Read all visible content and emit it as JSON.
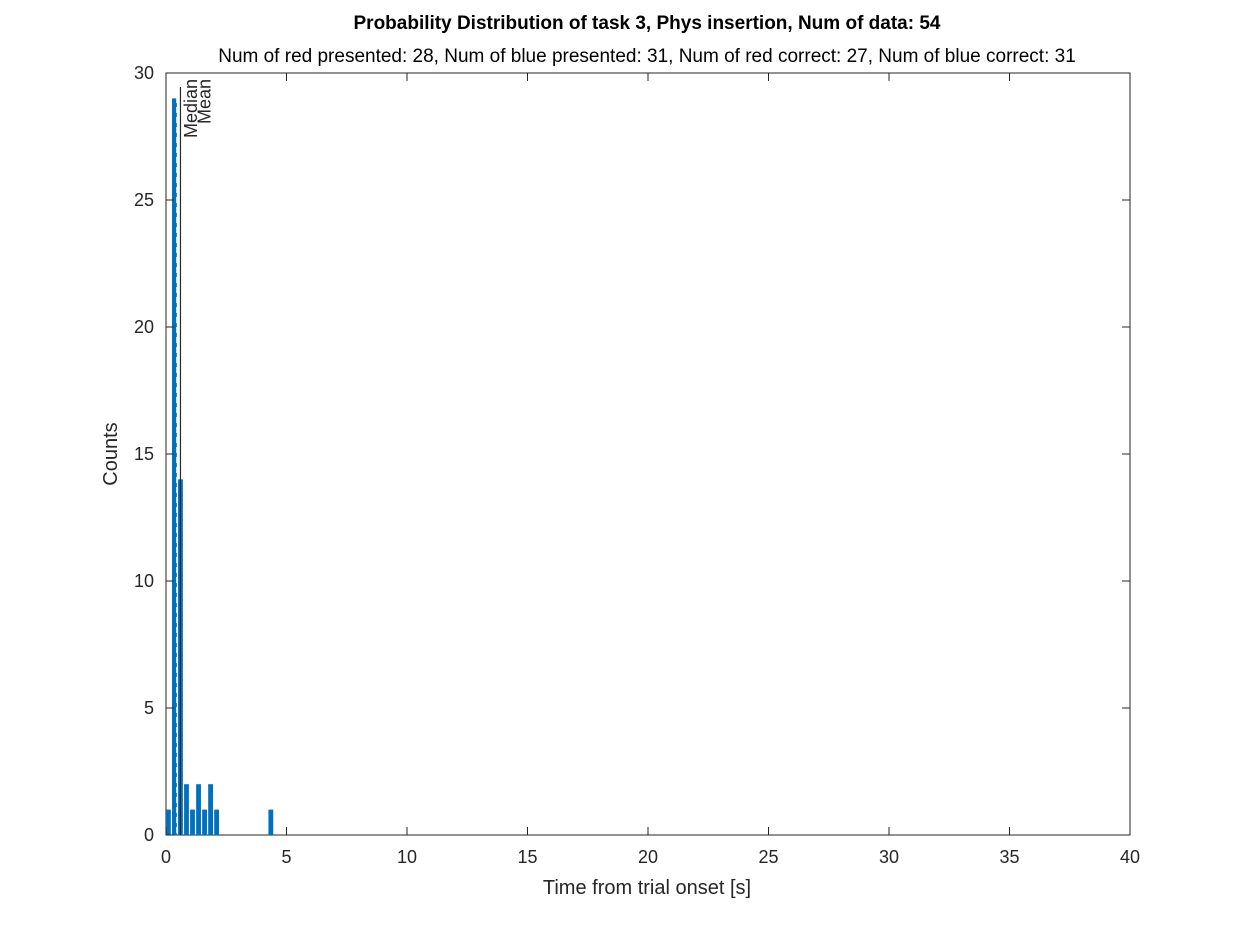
{
  "chart_data": {
    "type": "bar",
    "title": "Probability Distribution of task 3, Phys insertion, Num of data: 54",
    "subtitle": "Num of red presented: 28, Num of blue presented: 31, Num of red correct: 27, Num of blue correct: 31",
    "xlabel": "Time from trial onset [s]",
    "ylabel": "Counts",
    "xlim": [
      0,
      40
    ],
    "ylim": [
      0,
      30
    ],
    "xticks": [
      0,
      5,
      10,
      15,
      20,
      25,
      30,
      35,
      40
    ],
    "yticks": [
      0,
      5,
      10,
      15,
      20,
      25,
      30
    ],
    "bar_width": 0.2,
    "bar_color": "#0072BD",
    "bars": [
      {
        "x": 0.1,
        "value": 1
      },
      {
        "x": 0.35,
        "value": 29
      },
      {
        "x": 0.6,
        "value": 14
      },
      {
        "x": 0.85,
        "value": 2
      },
      {
        "x": 1.1,
        "value": 1
      },
      {
        "x": 1.35,
        "value": 2
      },
      {
        "x": 1.6,
        "value": 1
      },
      {
        "x": 1.85,
        "value": 2
      },
      {
        "x": 2.1,
        "value": 1
      },
      {
        "x": 4.35,
        "value": 1
      }
    ],
    "reference_lines": [
      {
        "label": "Median",
        "x": 0.45,
        "style": "dashed",
        "color": "#ffffff"
      },
      {
        "label": "Mean",
        "x": 0.6,
        "style": "solid",
        "color": "#262626"
      }
    ],
    "grid": false,
    "legend": "none"
  }
}
